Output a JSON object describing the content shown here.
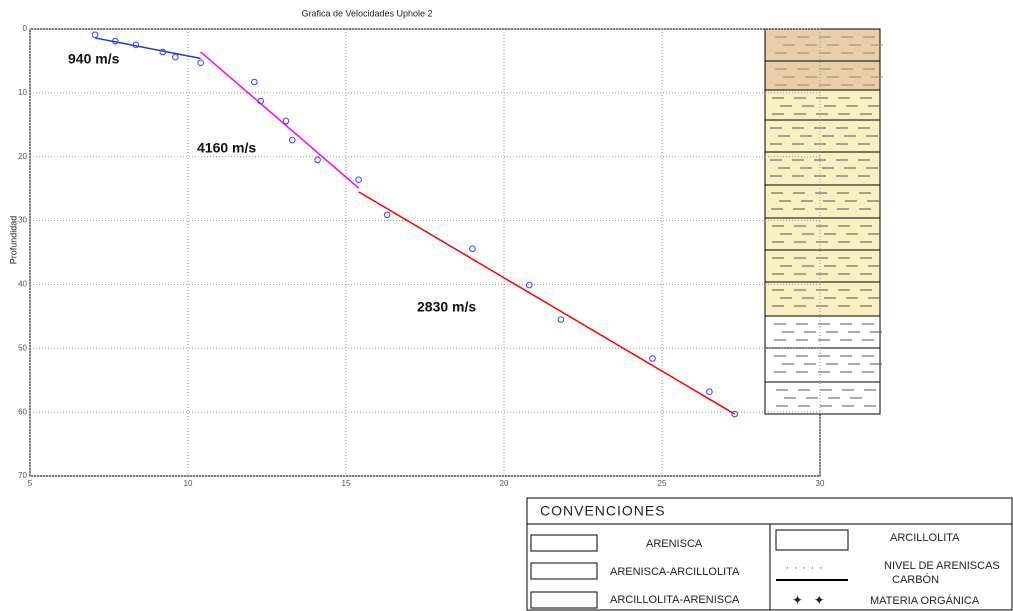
{
  "chart_data": {
    "type": "scatter",
    "title": "Grafica de Velocidades Uphole 2",
    "y_label": "Profundidad",
    "xlim": [
      5,
      30
    ],
    "xticks": [
      5,
      10,
      15,
      20,
      25,
      30
    ],
    "ylim": [
      0,
      70
    ],
    "yticks": [
      0,
      10,
      20,
      30,
      40,
      50,
      60,
      70
    ],
    "y_inverted": true,
    "grid": true,
    "points": {
      "color": "#3344ff",
      "x": [
        7.06,
        7.7,
        8.35,
        9.2,
        9.6,
        10.4,
        12.1,
        12.3,
        13.1,
        13.3,
        14.1,
        15.4,
        16.3,
        19.0,
        20.8,
        21.8,
        24.7,
        26.5,
        27.3
      ],
      "y": [
        0.9,
        1.9,
        2.5,
        3.6,
        4.4,
        5.3,
        8.3,
        11.3,
        14.4,
        17.4,
        20.5,
        23.6,
        29.1,
        34.4,
        40.1,
        45.5,
        51.6,
        56.8,
        60.3
      ]
    },
    "lines": [
      {
        "color": "#1f3fbf",
        "x": [
          7.06,
          10.4
        ],
        "y": [
          1.4,
          4.6
        ]
      },
      {
        "color": "#ff00ff",
        "x": [
          10.4,
          15.4
        ],
        "y": [
          3.6,
          24.9
        ]
      },
      {
        "color": "#ff0000",
        "x": [
          15.4,
          27.3
        ],
        "y": [
          25.5,
          60.3
        ]
      }
    ],
    "annotations": [
      "940 m/s",
      "4160 m/s",
      "2830 m/s"
    ]
  },
  "legend": {
    "title": "CONVENCIONES",
    "items": [
      "ARENISCA",
      "ARENISCA-ARCILLOLITA",
      "ARCILLOLITA-ARENISCA",
      "ARCILLOLITA",
      "NIVEL DE ARENISCAS",
      "CARBÓN",
      "MATERIA ORGÁNICA"
    ]
  }
}
